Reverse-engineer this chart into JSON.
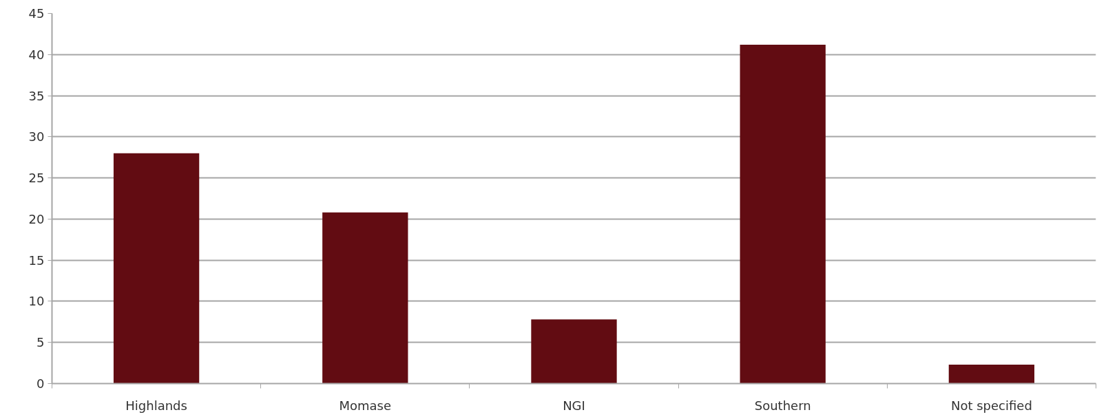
{
  "chart_data": {
    "type": "bar",
    "categories": [
      "Highlands",
      "Momase",
      "NGI",
      "Southern",
      "Not specified"
    ],
    "values": [
      28,
      20.8,
      7.8,
      41.2,
      2.3
    ],
    "color": "#620c12",
    "ylim": [
      0,
      45
    ],
    "yticks": [
      0,
      5,
      10,
      15,
      20,
      25,
      30,
      35,
      40,
      45
    ],
    "grid": "y"
  }
}
